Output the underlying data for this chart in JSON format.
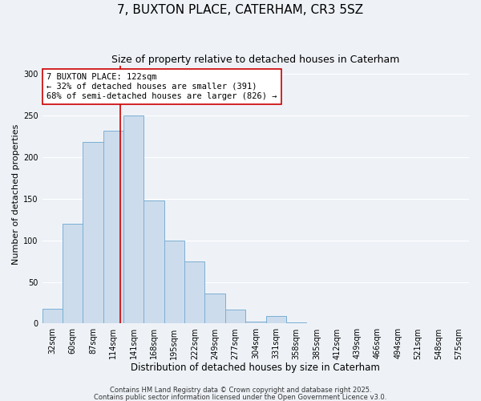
{
  "title": "7, BUXTON PLACE, CATERHAM, CR3 5SZ",
  "subtitle": "Size of property relative to detached houses in Caterham",
  "xlabel": "Distribution of detached houses by size in Caterham",
  "ylabel": "Number of detached properties",
  "bar_values": [
    18,
    120,
    218,
    232,
    250,
    148,
    100,
    75,
    36,
    17,
    2,
    9,
    1,
    0,
    0,
    0,
    0,
    0,
    0,
    0,
    0
  ],
  "categories": [
    "32sqm",
    "60sqm",
    "87sqm",
    "114sqm",
    "141sqm",
    "168sqm",
    "195sqm",
    "222sqm",
    "249sqm",
    "277sqm",
    "304sqm",
    "331sqm",
    "358sqm",
    "385sqm",
    "412sqm",
    "439sqm",
    "466sqm",
    "494sqm",
    "521sqm",
    "548sqm",
    "575sqm"
  ],
  "bar_color": "#ccdcec",
  "bar_edge_color": "#7bafd4",
  "vline_x_index": 3.85,
  "vline_color": "#cc0000",
  "ylim": [
    0,
    310
  ],
  "yticks": [
    0,
    50,
    100,
    150,
    200,
    250,
    300
  ],
  "annotation_title": "7 BUXTON PLACE: 122sqm",
  "annotation_line1": "← 32% of detached houses are smaller (391)",
  "annotation_line2": "68% of semi-detached houses are larger (826) →",
  "annotation_box_color": "#ffffff",
  "annotation_box_edge": "#cc0000",
  "footnote1": "Contains HM Land Registry data © Crown copyright and database right 2025.",
  "footnote2": "Contains public sector information licensed under the Open Government Licence v3.0.",
  "bg_color": "#eef2f7",
  "grid_color": "#ffffff",
  "title_fontsize": 11,
  "subtitle_fontsize": 9,
  "xlabel_fontsize": 8.5,
  "ylabel_fontsize": 8,
  "tick_fontsize": 7,
  "annotation_fontsize": 7.5,
  "footnote_fontsize": 6
}
